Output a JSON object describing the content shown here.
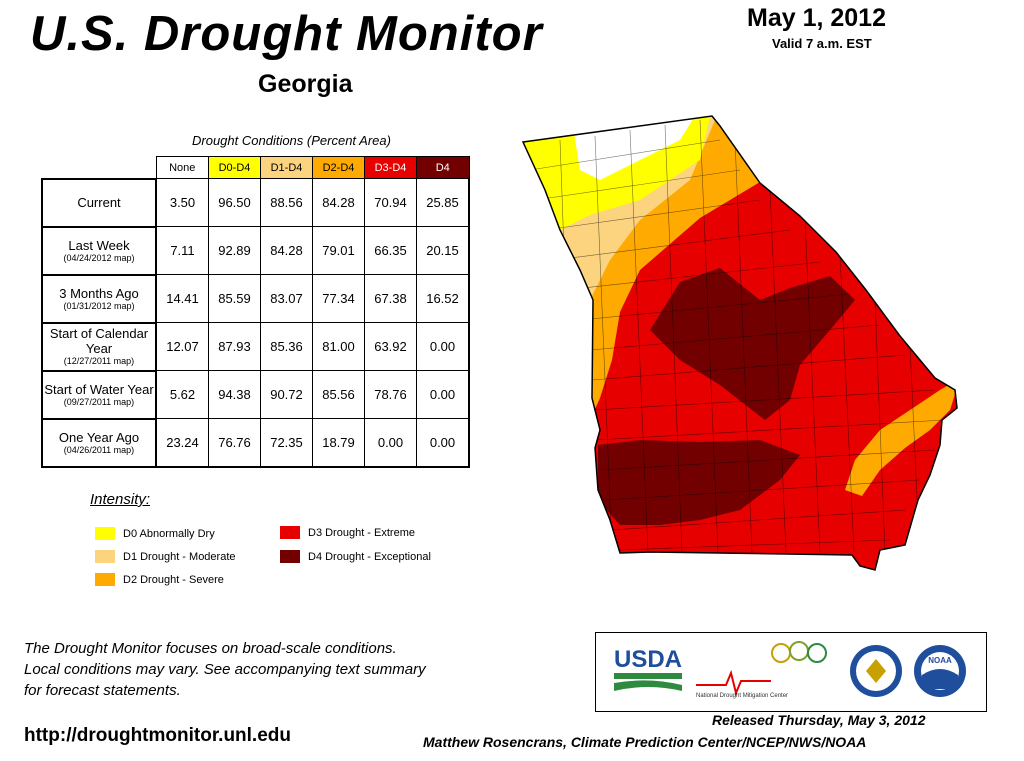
{
  "header": {
    "title": "U.S. Drought Monitor",
    "date": "May 1, 2012",
    "valid": "Valid 7 a.m. EST",
    "state": "Georgia"
  },
  "table": {
    "caption": "Drought Conditions (Percent Area)",
    "columns": [
      "None",
      "D0-D4",
      "D1-D4",
      "D2-D4",
      "D3-D4",
      "D4"
    ],
    "rows": [
      {
        "label": "Current",
        "sub": "",
        "values": [
          "3.50",
          "96.50",
          "88.56",
          "84.28",
          "70.94",
          "25.85"
        ]
      },
      {
        "label": "Last Week",
        "sub": "(04/24/2012 map)",
        "values": [
          "7.11",
          "92.89",
          "84.28",
          "79.01",
          "66.35",
          "20.15"
        ]
      },
      {
        "label": "3 Months Ago",
        "sub": "(01/31/2012 map)",
        "values": [
          "14.41",
          "85.59",
          "83.07",
          "77.34",
          "67.38",
          "16.52"
        ]
      },
      {
        "label": "Start of Calendar Year",
        "sub": "(12/27/2011 map)",
        "values": [
          "12.07",
          "87.93",
          "85.36",
          "81.00",
          "63.92",
          "0.00"
        ]
      },
      {
        "label": "Start of Water Year",
        "sub": "(09/27/2011 map)",
        "values": [
          "5.62",
          "94.38",
          "90.72",
          "85.56",
          "78.76",
          "0.00"
        ]
      },
      {
        "label": "One Year Ago",
        "sub": "(04/26/2011 map)",
        "values": [
          "23.24",
          "76.76",
          "72.35",
          "18.79",
          "0.00",
          "0.00"
        ]
      }
    ]
  },
  "legend": {
    "title": "Intensity:",
    "items": [
      {
        "label": "D0 Abnormally Dry",
        "color": "#ffff00"
      },
      {
        "label": "D1 Drought - Moderate",
        "color": "#fcd37f"
      },
      {
        "label": "D2 Drought - Severe",
        "color": "#ffaa00"
      },
      {
        "label": "D3 Drought - Extreme",
        "color": "#e60000"
      },
      {
        "label": "D4 Drought - Exceptional",
        "color": "#730000"
      }
    ]
  },
  "footer": {
    "note_lines": [
      "The Drought Monitor focuses on broad-scale conditions.",
      "Local conditions may vary. See accompanying text summary",
      "for forecast statements."
    ],
    "url": "http://droughtmonitor.unl.edu",
    "released": "Released Thursday, May 3, 2012",
    "author": "Matthew Rosencrans, Climate Prediction Center/NCEP/NWS/NOAA"
  },
  "logos": {
    "usda": "USDA",
    "ndmc": "National Drought Mitigation Center",
    "noaa": "NOAA"
  },
  "map": {
    "region": "Georgia",
    "palette": {
      "none": "#ffffff",
      "d0": "#ffff00",
      "d1": "#fcd37f",
      "d2": "#ffaa00",
      "d3": "#e60000",
      "d4": "#730000"
    }
  }
}
